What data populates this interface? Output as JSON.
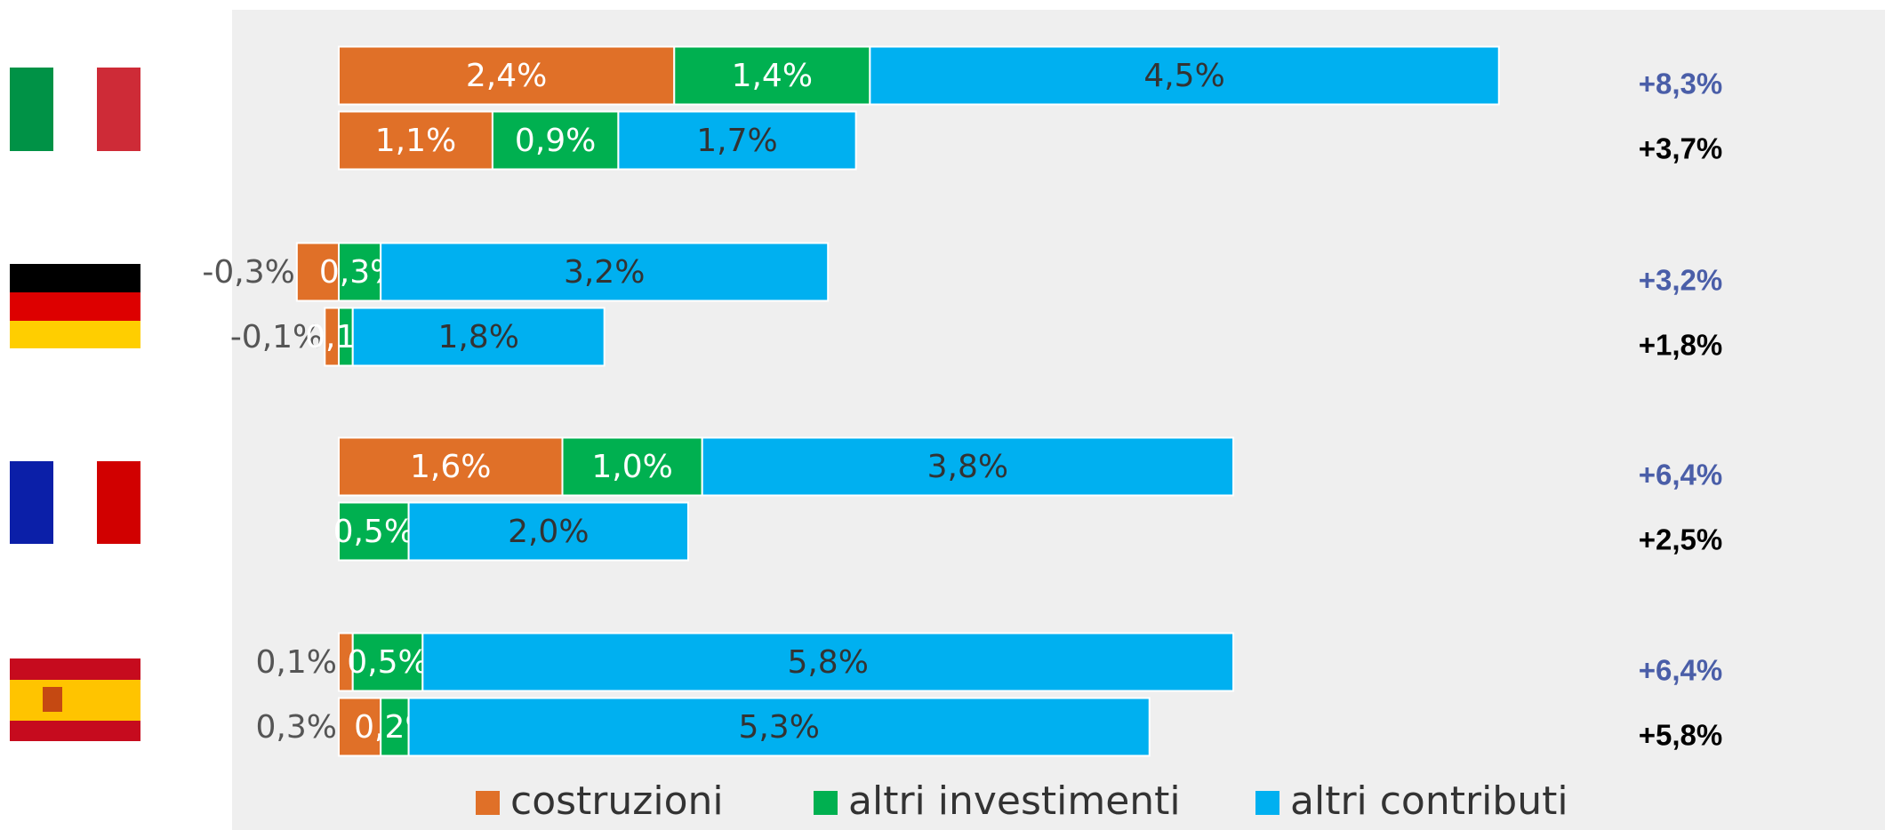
{
  "chart_data": {
    "type": "stacked-bar-horizontal",
    "series": [
      {
        "name": "costruzioni",
        "color": "#e07028",
        "values": [
          2.4,
          1.1,
          -0.3,
          -0.1,
          1.6,
          null,
          0.1,
          0.3
        ],
        "value_labels": [
          "2,4%",
          "1,1%",
          "-0,3%",
          "-0,1%",
          "1,6%",
          null,
          "0,1%",
          "0,3%"
        ]
      },
      {
        "name": "altri investimenti",
        "color": "#00b050",
        "values": [
          1.4,
          0.9,
          0.3,
          0.1,
          1.0,
          0.5,
          0.5,
          0.2
        ],
        "value_labels": [
          "1,4%",
          "0,9%",
          "0,3%",
          "0,1%",
          "1,0%",
          "0,5%",
          "0,5%",
          "0,2%"
        ]
      },
      {
        "name": "altri contributi",
        "color": "#00b0f0",
        "values": [
          4.5,
          1.7,
          3.2,
          1.8,
          3.8,
          2.0,
          5.8,
          5.3
        ],
        "value_labels": [
          "4,5%",
          "1,7%",
          "3,2%",
          "1,8%",
          "3,8%",
          "2,0%",
          "5,8%",
          "5,3%"
        ]
      }
    ],
    "total_labels": [
      "+8,3%",
      "+3,7%",
      "+3,2%",
      "+1,8%",
      "+6,4%",
      "+2,5%",
      "+6,4%",
      "+5,8%"
    ]
  }
}
